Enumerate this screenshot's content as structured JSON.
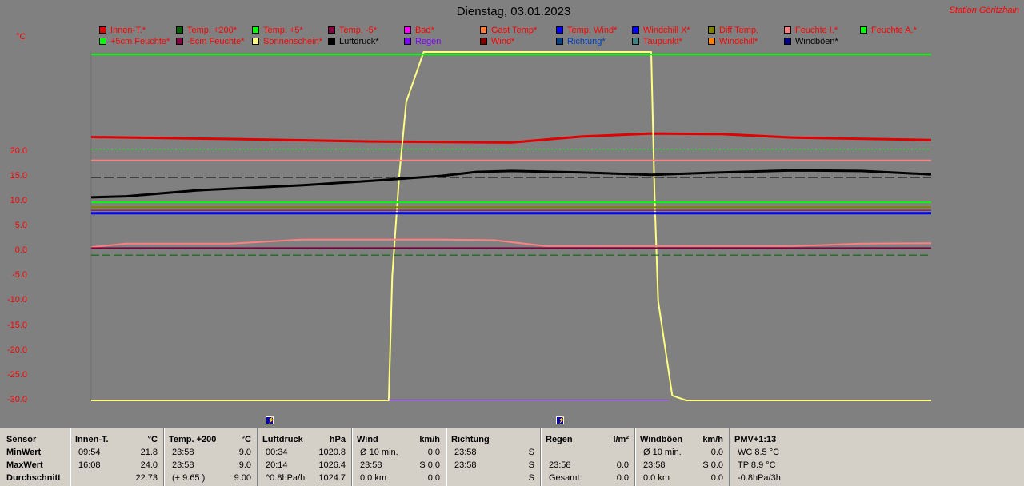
{
  "title": "Dienstag, 03.01.2023",
  "station": "Station Göritzhain",
  "unit": "°C",
  "legend": [
    {
      "label": "Innen-T.*",
      "color": "#e00000",
      "text_color": "#ff0000"
    },
    {
      "label": "Temp. +200*",
      "color": "#006000",
      "text_color": "#ff0000"
    },
    {
      "label": "Temp. +5*",
      "color": "#00ff00",
      "text_color": "#ff0000"
    },
    {
      "label": "Temp. -5*",
      "color": "#800040",
      "text_color": "#ff0000"
    },
    {
      "label": "Bad*",
      "color": "#ff00ff",
      "text_color": "#ff0000"
    },
    {
      "label": "Gast Temp*",
      "color": "#ff8040",
      "text_color": "#ff0000"
    },
    {
      "label": "Temp. Wind*",
      "color": "#0000ff",
      "text_color": "#ff0000"
    },
    {
      "label": "Windchill X*",
      "color": "#0000ff",
      "text_color": "#ff0000"
    },
    {
      "label": "Diff Temp.",
      "color": "#808000",
      "text_color": "#ff0000"
    },
    {
      "label": "Feuchte I.*",
      "color": "#ff8080",
      "text_color": "#ff0000"
    },
    {
      "label": "Feuchte A.*",
      "color": "#00ff00",
      "text_color": "#ff0000"
    },
    {
      "label": "+5cm Feuchte*",
      "color": "#00ff00",
      "text_color": "#ff0000"
    },
    {
      "label": "-5cm Feuchte*",
      "color": "#800040",
      "text_color": "#ff0000"
    },
    {
      "label": "Sonnenschein*",
      "color": "#ffff80",
      "text_color": "#ff0000"
    },
    {
      "label": "Luftdruck*",
      "color": "#000000",
      "text_color": "#000000"
    },
    {
      "label": "Regen",
      "color": "#8000ff",
      "text_color": "#8000ff"
    },
    {
      "label": "Wind*",
      "color": "#800000",
      "text_color": "#ff0000"
    },
    {
      "label": "Richtung*",
      "color": "#004080",
      "text_color": "#0040c0"
    },
    {
      "label": "Taupunkt*",
      "color": "#408080",
      "text_color": "#ff0000"
    },
    {
      "label": "Windchill*",
      "color": "#ff8000",
      "text_color": "#ff0000"
    },
    {
      "label": "Windböen*",
      "color": "#000080",
      "text_color": "#000000"
    }
  ],
  "chart_data": {
    "type": "line",
    "title": "Dienstag, 03.01.2023",
    "ylabel": "°C",
    "ylim": [
      -30,
      40
    ],
    "yticks": [
      "20.0",
      "15.0",
      "10.0",
      "5.0",
      "0.0",
      "-5.0",
      "-10.0",
      "-15.0",
      "-20.0",
      "-25.0",
      "-30.0"
    ],
    "ytick_values": [
      20,
      15,
      10,
      5,
      0,
      -5,
      -10,
      -15,
      -20,
      -25,
      -30
    ],
    "x_hours": [
      0,
      24
    ],
    "series": [
      {
        "name": "Innen-T.*",
        "color": "#e00000",
        "width": 3,
        "x": [
          0,
          4,
          8,
          12,
          14,
          16,
          18,
          20,
          24
        ],
        "y": [
          22.9,
          22.5,
          22.0,
          21.8,
          23.0,
          23.6,
          23.5,
          22.8,
          22.3
        ]
      },
      {
        "name": "Sonnenschein*",
        "color": "#ffff80",
        "width": 2,
        "x": [
          0,
          8.5,
          8.6,
          8.8,
          9.0,
          9.5,
          16.0,
          16.1,
          16.2,
          16.6,
          17.0,
          24
        ],
        "y": [
          -30,
          -30,
          -5,
          15,
          30,
          40,
          40,
          10,
          -10,
          -29,
          -30,
          -30
        ]
      },
      {
        "name": "Luftdruck*",
        "color": "#000000",
        "width": 3,
        "x": [
          0,
          1,
          3,
          6,
          8,
          10,
          11,
          12,
          14,
          16,
          18,
          20,
          22,
          24
        ],
        "y": [
          10.8,
          11.0,
          12.2,
          13.2,
          14.1,
          15.1,
          15.9,
          16.1,
          15.8,
          15.3,
          15.8,
          16.2,
          16.1,
          15.4
        ]
      },
      {
        "name": "Feuchte I.*",
        "color": "#ff8080",
        "width": 2,
        "x": [
          0,
          1,
          4,
          6,
          8,
          10,
          11.5,
          13,
          16,
          20,
          22,
          24
        ],
        "y": [
          0.8,
          1.5,
          1.5,
          2.3,
          2.3,
          2.3,
          2.2,
          1.0,
          1.0,
          1.0,
          1.5,
          1.6
        ]
      },
      {
        "name": "Taupunkt*",
        "color": "#ff8080",
        "width": 2,
        "x": [
          0,
          24
        ],
        "y": [
          18.2,
          18.2
        ]
      },
      {
        "name": "Temp. +5*",
        "color": "#00ff00",
        "width": 2,
        "x": [
          0,
          24
        ],
        "y": [
          39.5,
          39.5
        ]
      },
      {
        "name": "Feuchte A.*",
        "color": "#00ff00",
        "width": 2,
        "x": [
          0,
          24
        ],
        "y": [
          9.8,
          9.8
        ]
      },
      {
        "name": "Diff Temp.",
        "color": "#808000",
        "width": 2,
        "x": [
          0,
          24
        ],
        "y": [
          8.8,
          8.8
        ]
      },
      {
        "name": "-5cm Feuchte*",
        "color": "#800040",
        "width": 1,
        "x": [
          0,
          24
        ],
        "y": [
          8.2,
          8.2
        ]
      },
      {
        "name": "Windchill X*",
        "color": "#0000ff",
        "width": 3,
        "x": [
          0,
          24
        ],
        "y": [
          7.6,
          7.6
        ]
      },
      {
        "name": "Temp. -5*",
        "color": "#800040",
        "width": 2,
        "x": [
          0,
          24
        ],
        "y": [
          0.6,
          0.6
        ]
      },
      {
        "name": "Regen",
        "color": "#8000ff",
        "width": 1,
        "x": [
          8.5,
          16.5
        ],
        "y": [
          -29.9,
          -29.9
        ]
      },
      {
        "name": "Temp. +200*",
        "color": "#00ff00",
        "width": 1,
        "dash": "2,3",
        "x": [
          0,
          24
        ],
        "y": [
          20.5,
          20.5
        ]
      },
      {
        "name": "Windböen*",
        "color": "#000000",
        "width": 1,
        "dash": "12,4",
        "x": [
          0,
          24
        ],
        "y": [
          14.8,
          14.8
        ]
      },
      {
        "name": "Temp. Wind*",
        "color": "#006000",
        "width": 1,
        "dash": "10,4",
        "x": [
          0,
          24
        ],
        "y": [
          -0.8,
          -0.8
        ]
      }
    ],
    "event_markers": [
      {
        "x": 5.1
      },
      {
        "x": 13.4
      }
    ]
  },
  "stats": {
    "row_labels": [
      "Sensor",
      "MinWert",
      "MaxWert",
      "Durchschnitt"
    ],
    "columns": [
      {
        "name": "Innen-T.",
        "unit": "°C",
        "rows": [
          [
            "09:54",
            "21.8"
          ],
          [
            "16:08",
            "24.0"
          ],
          [
            "",
            "22.73"
          ]
        ]
      },
      {
        "name": "Temp. +200",
        "unit": "°C",
        "rows": [
          [
            "23:58",
            "9.0"
          ],
          [
            "23:58",
            "9.0"
          ],
          [
            "(+ 9.65 )",
            "9.00"
          ]
        ]
      },
      {
        "name": "Luftdruck",
        "unit": "hPa",
        "rows": [
          [
            "00:34",
            "1020.8"
          ],
          [
            "20:14",
            "1026.4"
          ],
          [
            "^0.8hPa/h",
            "1024.7"
          ]
        ]
      },
      {
        "name": "Wind",
        "unit": "km/h",
        "rows": [
          [
            "Ø 10 min.",
            "0.0"
          ],
          [
            "23:58",
            "S 0.0"
          ],
          [
            "0.0 km",
            "0.0"
          ]
        ]
      },
      {
        "name": "Richtung",
        "unit": "",
        "rows": [
          [
            "23:58",
            "S"
          ],
          [
            "23:58",
            "S"
          ],
          [
            "",
            "S"
          ]
        ]
      },
      {
        "name": "Regen",
        "unit": "l/m²",
        "rows": [
          [
            "",
            ""
          ],
          [
            "23:58",
            "0.0"
          ],
          [
            "Gesamt:",
            "0.0"
          ]
        ]
      },
      {
        "name": "Windböen",
        "unit": "km/h",
        "rows": [
          [
            "Ø 10 min.",
            "0.0"
          ],
          [
            "23:58",
            "S 0.0"
          ],
          [
            "0.0 km",
            "0.0"
          ]
        ]
      },
      {
        "name": "PMV+1:13",
        "unit": "",
        "rows": [
          [
            "WC 8.5 °C",
            ""
          ],
          [
            "TP 8.9 °C",
            ""
          ],
          [
            "-0.8hPa/3h",
            ""
          ]
        ]
      }
    ]
  }
}
